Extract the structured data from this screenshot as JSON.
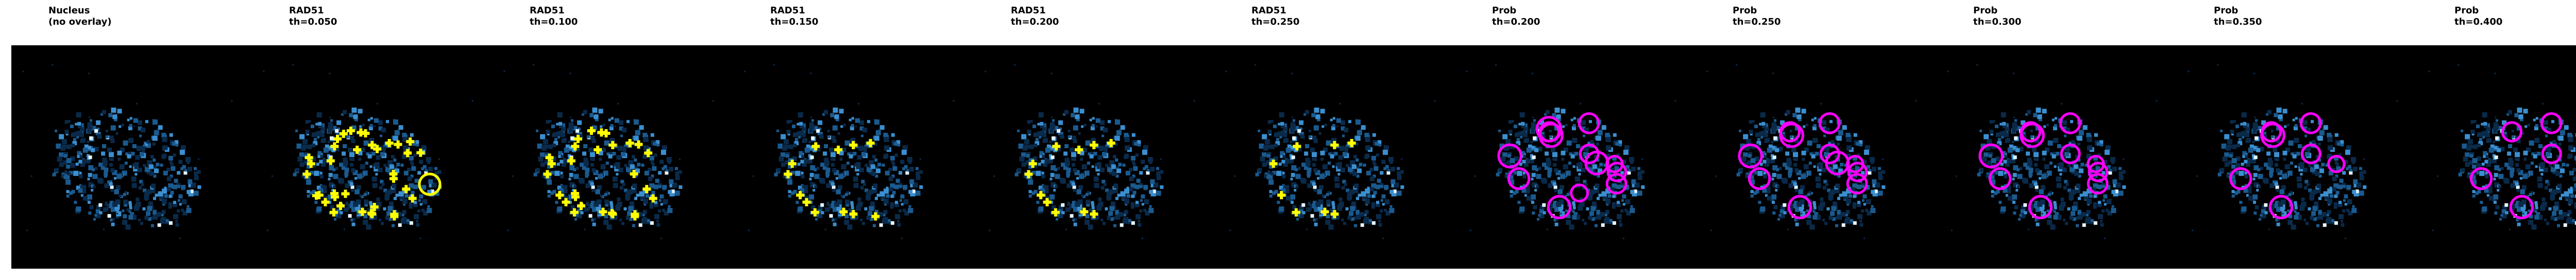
{
  "figure": {
    "background": "#ffffff",
    "image_background": "#000000",
    "panels": [
      {
        "title": "Nucleus\n(no overlay)",
        "overlay": "none",
        "marker_count": 0,
        "overlay_color": ""
      },
      {
        "title": "RAD51\nth=0.050",
        "overlay": "cross",
        "marker_count": 36,
        "overlay_color": "#ffff00"
      },
      {
        "title": "RAD51\nth=0.100",
        "overlay": "cross",
        "marker_count": 28,
        "overlay_color": "#ffff00"
      },
      {
        "title": "RAD51\nth=0.150",
        "overlay": "cross",
        "marker_count": 12,
        "overlay_color": "#ffff00"
      },
      {
        "title": "RAD51\nth=0.200",
        "overlay": "cross",
        "marker_count": 11,
        "overlay_color": "#ffff00"
      },
      {
        "title": "RAD51\nth=0.250",
        "overlay": "cross",
        "marker_count": 8,
        "overlay_color": "#ffff00"
      },
      {
        "title": "Prob\nth=0.200",
        "overlay": "ring",
        "marker_count": 13,
        "overlay_color": "#ff00ff"
      },
      {
        "title": "Prob\nth=0.250",
        "overlay": "ring",
        "marker_count": 11,
        "overlay_color": "#ff00ff"
      },
      {
        "title": "Prob\nth=0.300",
        "overlay": "ring",
        "marker_count": 10,
        "overlay_color": "#ff00ff"
      },
      {
        "title": "Prob\nth=0.350",
        "overlay": "ring",
        "marker_count": 7,
        "overlay_color": "#ff00ff"
      },
      {
        "title": "Prob\nth=0.400",
        "overlay": "ring",
        "marker_count": 5,
        "overlay_color": "#ff00ff"
      }
    ]
  },
  "colors": {
    "nucleus_dark": "#0a2a4a",
    "nucleus_mid": "#1a5a8f",
    "nucleus_bright": "#3b8fd0",
    "nucleus_highlight": "#e6f4ff",
    "rad51_cross": "#ffff00",
    "prob_ring": "#ff00ff"
  }
}
